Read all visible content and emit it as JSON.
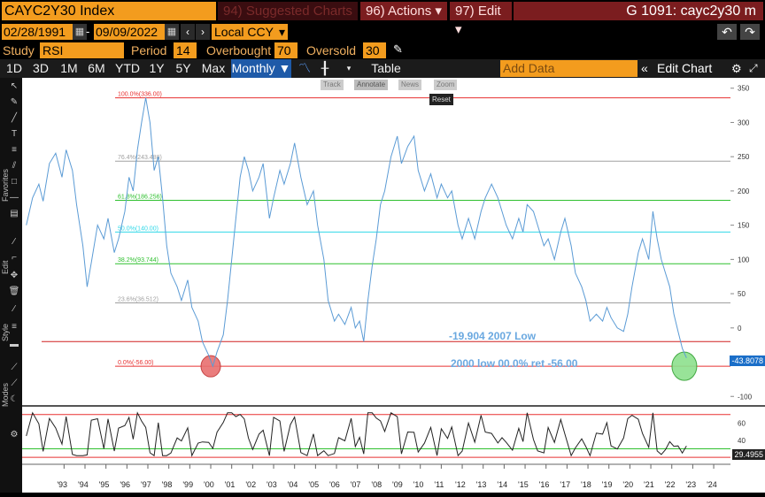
{
  "header": {
    "ticker": "CAYC2Y30 Index",
    "suggested": "94) Suggested Charts",
    "actions": "96) Actions ▾",
    "edit": "97) Edit ▾",
    "title": "G 1091: cayc2y30 m"
  },
  "dates": {
    "start": "02/28/1991",
    "end": "09/09/2022",
    "currency": "Local CCY"
  },
  "study": {
    "label": "Study",
    "value": "RSI",
    "period_label": "Period",
    "period": "14",
    "overbought_label": "Overbought",
    "overbought": "70",
    "oversold_label": "Oversold",
    "oversold": "30"
  },
  "toolbar": {
    "tabs": [
      "1D",
      "3D",
      "1M",
      "6M",
      "YTD",
      "1Y",
      "5Y",
      "Max"
    ],
    "frequency": "Monthly ▼",
    "table": "Table",
    "add_data_placeholder": "Add Data",
    "edit_chart": "Edit Chart"
  },
  "chart_tools": {
    "track": "Track",
    "annotate": "Annotate",
    "news": "News",
    "zoom": "Zoom",
    "reset": "Reset"
  },
  "left_labels": {
    "favorites": "Favorites",
    "edit": "Edit",
    "style": "Style",
    "modes": "Modes"
  },
  "colors": {
    "orange": "#f39c1e",
    "darkred": "#7b1d1f",
    "line": "#5b9bd5",
    "red": "#e83030",
    "green": "#2fc02f",
    "cyan": "#30d8e8"
  },
  "chart_data": {
    "type": "line",
    "x_ticks": [
      "'93",
      "'94",
      "'95",
      "'96",
      "'97",
      "'98",
      "'99",
      "'00",
      "'01",
      "'02",
      "'03",
      "'04",
      "'05",
      "'06",
      "'07",
      "'08",
      "'09",
      "'10",
      "'11",
      "'12",
      "'13",
      "'14",
      "'15",
      "'16",
      "'17",
      "'18",
      "'19",
      "'20",
      "'21",
      "'22",
      "'23",
      "'24"
    ],
    "y_ticks": [
      -100,
      -50,
      0,
      50,
      100,
      150,
      200,
      250,
      300,
      350
    ],
    "ylim": [
      -110,
      360
    ],
    "fib_levels": [
      {
        "label": "100.0%(336.00)",
        "value": 336,
        "color": "red"
      },
      {
        "label": "76.4%(243.488)",
        "value": 243.488,
        "color": "gray"
      },
      {
        "label": "61.8%(186.256)",
        "value": 186.256,
        "color": "green"
      },
      {
        "label": "50.0%(140.00)",
        "value": 140,
        "color": "cyan"
      },
      {
        "label": "38.2%(93.744)",
        "value": 93.744,
        "color": "green"
      },
      {
        "label": "23.6%(36.512)",
        "value": 36.512,
        "color": "gray"
      },
      {
        "label": "0.0%(-56.00)",
        "value": -56,
        "color": "red"
      }
    ],
    "hline_2007": -19.904,
    "annotations": [
      "-19.904 2007 Low",
      "2000 low 00.0% ret -56.00"
    ],
    "last_value": "-43.8078",
    "series": [
      {
        "values": [
          [
            1991.2,
            150
          ],
          [
            1991.5,
            190
          ],
          [
            1991.8,
            210
          ],
          [
            1992.0,
            185
          ],
          [
            1992.3,
            240
          ],
          [
            1992.6,
            255
          ],
          [
            1992.9,
            220
          ],
          [
            1993.1,
            260
          ],
          [
            1993.4,
            230
          ],
          [
            1993.6,
            180
          ],
          [
            1993.9,
            120
          ],
          [
            1994.1,
            60
          ],
          [
            1994.3,
            95
          ],
          [
            1994.6,
            150
          ],
          [
            1994.9,
            130
          ],
          [
            1995.1,
            160
          ],
          [
            1995.4,
            110
          ],
          [
            1995.6,
            130
          ],
          [
            1995.9,
            170
          ],
          [
            1996.1,
            220
          ],
          [
            1996.3,
            200
          ],
          [
            1996.5,
            260
          ],
          [
            1996.7,
            300
          ],
          [
            1996.9,
            336
          ],
          [
            1997.1,
            300
          ],
          [
            1997.3,
            230
          ],
          [
            1997.5,
            250
          ],
          [
            1997.7,
            190
          ],
          [
            1997.9,
            120
          ],
          [
            1998.1,
            80
          ],
          [
            1998.4,
            60
          ],
          [
            1998.6,
            40
          ],
          [
            1998.9,
            70
          ],
          [
            1999.1,
            30
          ],
          [
            1999.4,
            10
          ],
          [
            1999.6,
            -20
          ],
          [
            1999.9,
            -40
          ],
          [
            2000.1,
            -56
          ],
          [
            2000.3,
            -35
          ],
          [
            2000.6,
            -10
          ],
          [
            2000.8,
            40
          ],
          [
            2001.0,
            100
          ],
          [
            2001.2,
            160
          ],
          [
            2001.4,
            220
          ],
          [
            2001.6,
            250
          ],
          [
            2001.8,
            230
          ],
          [
            2002.0,
            200
          ],
          [
            2002.3,
            220
          ],
          [
            2002.5,
            240
          ],
          [
            2002.8,
            160
          ],
          [
            2003.0,
            190
          ],
          [
            2003.3,
            230
          ],
          [
            2003.5,
            210
          ],
          [
            2003.8,
            240
          ],
          [
            2004.0,
            270
          ],
          [
            2004.3,
            220
          ],
          [
            2004.6,
            180
          ],
          [
            2004.9,
            200
          ],
          [
            2005.1,
            150
          ],
          [
            2005.4,
            100
          ],
          [
            2005.6,
            40
          ],
          [
            2005.9,
            10
          ],
          [
            2006.1,
            20
          ],
          [
            2006.4,
            5
          ],
          [
            2006.7,
            30
          ],
          [
            2006.9,
            0
          ],
          [
            2007.1,
            10
          ],
          [
            2007.3,
            -19.9
          ],
          [
            2007.5,
            40
          ],
          [
            2007.7,
            90
          ],
          [
            2007.9,
            130
          ],
          [
            2008.1,
            180
          ],
          [
            2008.3,
            200
          ],
          [
            2008.6,
            250
          ],
          [
            2008.9,
            280
          ],
          [
            2009.1,
            240
          ],
          [
            2009.4,
            265
          ],
          [
            2009.7,
            280
          ],
          [
            2009.9,
            230
          ],
          [
            2010.2,
            200
          ],
          [
            2010.5,
            225
          ],
          [
            2010.8,
            190
          ],
          [
            2011.0,
            210
          ],
          [
            2011.3,
            190
          ],
          [
            2011.5,
            200
          ],
          [
            2011.8,
            150
          ],
          [
            2012.0,
            130
          ],
          [
            2012.3,
            160
          ],
          [
            2012.6,
            130
          ],
          [
            2012.9,
            170
          ],
          [
            2013.1,
            190
          ],
          [
            2013.4,
            210
          ],
          [
            2013.7,
            190
          ],
          [
            2013.9,
            170
          ],
          [
            2014.1,
            150
          ],
          [
            2014.4,
            130
          ],
          [
            2014.7,
            160
          ],
          [
            2014.9,
            140
          ],
          [
            2015.1,
            180
          ],
          [
            2015.4,
            170
          ],
          [
            2015.6,
            150
          ],
          [
            2015.9,
            120
          ],
          [
            2016.1,
            130
          ],
          [
            2016.4,
            100
          ],
          [
            2016.7,
            140
          ],
          [
            2016.9,
            160
          ],
          [
            2017.2,
            120
          ],
          [
            2017.4,
            80
          ],
          [
            2017.7,
            60
          ],
          [
            2017.9,
            40
          ],
          [
            2018.1,
            10
          ],
          [
            2018.4,
            20
          ],
          [
            2018.7,
            10
          ],
          [
            2018.9,
            30
          ],
          [
            2019.1,
            15
          ],
          [
            2019.4,
            0
          ],
          [
            2019.7,
            -5
          ],
          [
            2019.9,
            20
          ],
          [
            2020.1,
            60
          ],
          [
            2020.4,
            110
          ],
          [
            2020.6,
            130
          ],
          [
            2020.9,
            100
          ],
          [
            2021.1,
            170
          ],
          [
            2021.3,
            130
          ],
          [
            2021.5,
            100
          ],
          [
            2021.7,
            80
          ],
          [
            2021.9,
            60
          ],
          [
            2022.1,
            20
          ],
          [
            2022.3,
            -5
          ],
          [
            2022.5,
            -30
          ],
          [
            2022.7,
            -43.8
          ]
        ]
      }
    ],
    "rsi": {
      "y_ticks": [
        20,
        40,
        60
      ],
      "overbought": 70,
      "oversold": 30,
      "last_value": "29.4955"
    }
  }
}
